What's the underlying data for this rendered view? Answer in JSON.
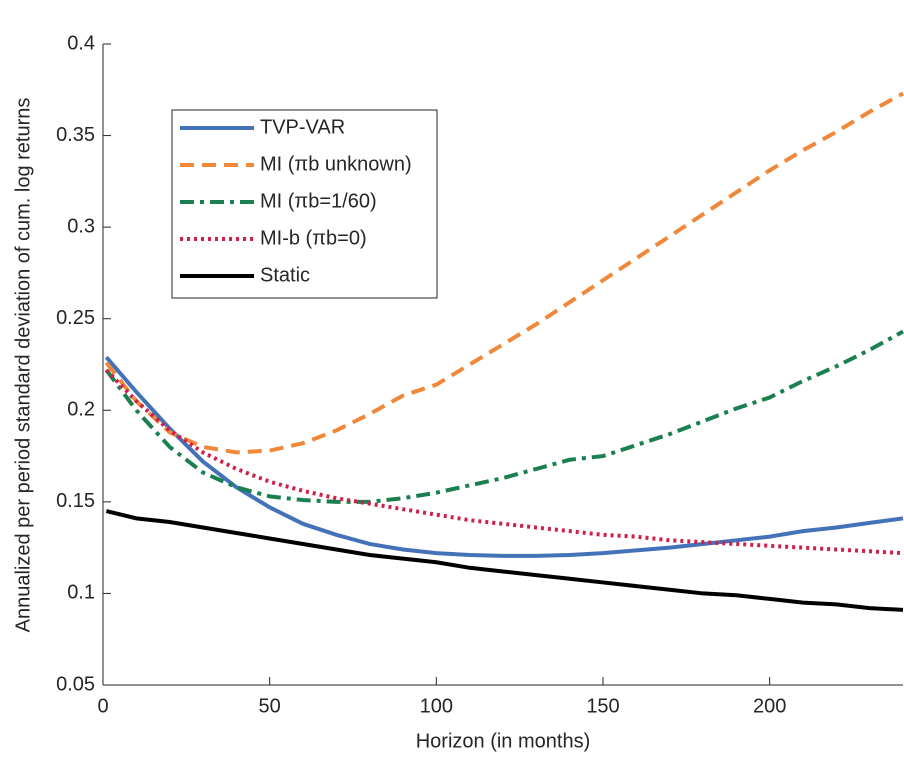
{
  "chart_data": {
    "type": "line",
    "xlabel": "Horizon (in months)",
    "ylabel": "Annualized per period standard deviation of cum. log returns",
    "x": [
      1,
      10,
      20,
      30,
      40,
      50,
      60,
      70,
      80,
      90,
      100,
      110,
      120,
      130,
      140,
      150,
      160,
      170,
      180,
      190,
      200,
      210,
      220,
      230,
      240
    ],
    "series": [
      {
        "name": "TVP-VAR",
        "color": "#4472b8",
        "dash": "solid",
        "values": [
          0.229,
          0.21,
          0.19,
          0.172,
          0.158,
          0.147,
          0.138,
          0.132,
          0.127,
          0.124,
          0.122,
          0.121,
          0.1205,
          0.1205,
          0.121,
          0.122,
          0.1235,
          0.125,
          0.127,
          0.129,
          0.131,
          0.134,
          0.136,
          0.1385,
          0.141
        ]
      },
      {
        "name": "MI (πb unknown)",
        "color": "#f0883a",
        "dash": "dashed",
        "values": [
          0.226,
          0.205,
          0.188,
          0.18,
          0.177,
          0.178,
          0.182,
          0.189,
          0.198,
          0.208,
          0.214,
          0.225,
          0.236,
          0.247,
          0.259,
          0.271,
          0.283,
          0.295,
          0.307,
          0.319,
          0.331,
          0.342,
          0.352,
          0.363,
          0.373
        ]
      },
      {
        "name": "MI (πb=1/60)",
        "color": "#1a8050",
        "dash": "dashdot",
        "values": [
          0.222,
          0.2,
          0.18,
          0.166,
          0.158,
          0.153,
          0.151,
          0.15,
          0.15,
          0.152,
          0.155,
          0.159,
          0.163,
          0.168,
          0.173,
          0.175,
          0.181,
          0.187,
          0.194,
          0.201,
          0.207,
          0.216,
          0.224,
          0.233,
          0.243
        ]
      },
      {
        "name": "MI-b (πb=0)",
        "color": "#d0204a",
        "dash": "dotted",
        "values": [
          0.222,
          0.205,
          0.189,
          0.177,
          0.168,
          0.161,
          0.156,
          0.152,
          0.149,
          0.146,
          0.143,
          0.14,
          0.138,
          0.136,
          0.134,
          0.132,
          0.131,
          0.129,
          0.128,
          0.127,
          0.126,
          0.125,
          0.124,
          0.123,
          0.122
        ]
      },
      {
        "name": "Static",
        "color": "#000000",
        "dash": "solid",
        "values": [
          0.145,
          0.141,
          0.139,
          0.136,
          0.133,
          0.13,
          0.127,
          0.124,
          0.121,
          0.119,
          0.117,
          0.114,
          0.112,
          0.11,
          0.108,
          0.106,
          0.104,
          0.102,
          0.1,
          0.099,
          0.097,
          0.095,
          0.094,
          0.092,
          0.091
        ]
      }
    ],
    "xlim": [
      0,
      240
    ],
    "ylim": [
      0.05,
      0.4
    ],
    "xticks": [
      0,
      50,
      100,
      150,
      200
    ],
    "yticks": [
      0.05,
      0.1,
      0.15,
      0.2,
      0.25,
      0.3,
      0.35,
      0.4
    ],
    "grid": false,
    "legend": "upper left"
  }
}
